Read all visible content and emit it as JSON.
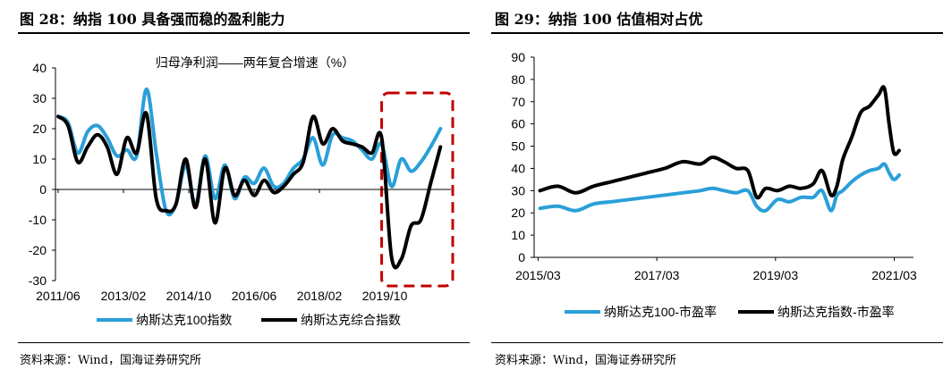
{
  "left": {
    "figure_title": "图 28：纳指 100 具备强而稳的盈利能力",
    "source": "资料来源：Wind，国海证券研究所"
  },
  "right": {
    "figure_title": "图 29：纳指 100 估值相对占优",
    "source": "资料来源：Wind，国海证券研究所"
  },
  "chart_data": [
    {
      "type": "line",
      "title": "归母净利润——两年复合增速（%）",
      "xlabel": "",
      "ylabel": "",
      "ylim": [
        -30,
        40
      ],
      "y_ticks": [
        "40",
        "30",
        "20",
        "10",
        "0",
        "-10",
        "-20",
        "-30"
      ],
      "x_ticks": [
        "2011/06",
        "2013/02",
        "2014/10",
        "2016/06",
        "2018/02",
        "2019/10"
      ],
      "x": [
        2011.42,
        2011.67,
        2011.92,
        2012.17,
        2012.42,
        2012.67,
        2012.92,
        2013.17,
        2013.42,
        2013.67,
        2013.92,
        2014.17,
        2014.42,
        2014.67,
        2014.92,
        2015.17,
        2015.42,
        2015.67,
        2015.92,
        2016.17,
        2016.42,
        2016.67,
        2016.92,
        2017.17,
        2017.42,
        2017.67,
        2017.92,
        2018.17,
        2018.42,
        2018.67,
        2018.92,
        2019.17,
        2019.42,
        2019.67,
        2019.92,
        2020.17,
        2020.42,
        2020.67,
        2020.92,
        2021.17
      ],
      "series": [
        {
          "name": "纳斯达克100指数",
          "color": "#2a9fd8",
          "values": [
            24,
            22,
            12,
            19,
            21,
            17,
            11,
            13,
            11,
            33,
            12,
            -7,
            -5,
            8,
            -5,
            11,
            -3,
            8,
            -3,
            4,
            2,
            7,
            1,
            2,
            7,
            10,
            17,
            8,
            18,
            17,
            16,
            13,
            10,
            15,
            1,
            10,
            6,
            9,
            14,
            20
          ]
        },
        {
          "name": "纳斯达克综合指数",
          "color": "#000000",
          "values": [
            24,
            21,
            9,
            14,
            18,
            14,
            5,
            17,
            12,
            25,
            -3,
            -7,
            -5,
            10,
            -6,
            10,
            -11,
            7,
            -2,
            3,
            -2,
            3,
            -1,
            1,
            5,
            9,
            24,
            15,
            20,
            16,
            15,
            14,
            12,
            17,
            -22,
            -23,
            -12,
            -10,
            2,
            14
          ]
        }
      ],
      "highlight": {
        "from": 2019.67,
        "to": 2021.3,
        "color": "#c00000"
      },
      "legend": "bottom"
    },
    {
      "type": "line",
      "title": "",
      "xlabel": "",
      "ylabel": "",
      "ylim": [
        0,
        90
      ],
      "y_ticks": [
        "90",
        "80",
        "70",
        "60",
        "50",
        "40",
        "30",
        "20",
        "10",
        "0"
      ],
      "x_ticks": [
        "2015/03",
        "2017/03",
        "2019/03",
        "2021/03"
      ],
      "x": [
        2015.2,
        2015.5,
        2015.8,
        2016.1,
        2016.4,
        2016.7,
        2017.0,
        2017.3,
        2017.6,
        2017.9,
        2018.1,
        2018.3,
        2018.5,
        2018.7,
        2018.85,
        2019.0,
        2019.2,
        2019.4,
        2019.6,
        2019.8,
        2019.95,
        2020.1,
        2020.2,
        2020.3,
        2020.45,
        2020.6,
        2020.75,
        2020.9,
        2021.0,
        2021.08,
        2021.16,
        2021.25
      ],
      "series": [
        {
          "name": "纳斯达克100-市盈率",
          "color": "#2a9fd8",
          "values": [
            22,
            23,
            21,
            24,
            25,
            26,
            27,
            28,
            29,
            30,
            31,
            30,
            29,
            30,
            23,
            21,
            26,
            25,
            27,
            27,
            30,
            21,
            28,
            30,
            34,
            37,
            39,
            40,
            42,
            38,
            35,
            37
          ]
        },
        {
          "name": "纳斯达克指数-市盈率",
          "color": "#000000",
          "values": [
            30,
            32,
            29,
            32,
            34,
            36,
            38,
            40,
            43,
            42,
            45,
            43,
            40,
            39,
            27,
            31,
            30,
            32,
            31,
            33,
            39,
            28,
            32,
            44,
            54,
            65,
            68,
            73,
            76,
            60,
            47,
            48
          ]
        }
      ],
      "legend": "bottom"
    }
  ]
}
